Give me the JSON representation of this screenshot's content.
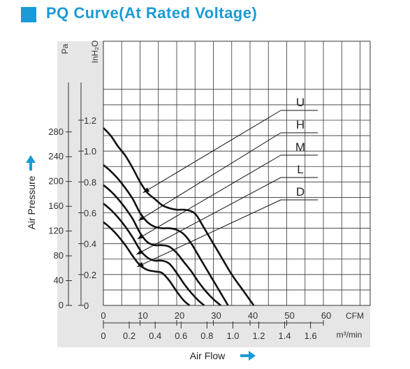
{
  "title": "PQ Curve(At Rated Voltage)",
  "chart_data": {
    "type": "line",
    "xlabel": "Air Flow",
    "ylabel": "Air Pressure",
    "x_units": [
      "CFM",
      "m³/min"
    ],
    "y_units": [
      "Pa",
      "InH₂O"
    ],
    "xlim": [
      0,
      60
    ],
    "ylim_inh2o": [
      0,
      1.2
    ],
    "x_ticks_cfm": [
      "0",
      "10",
      "20",
      "30",
      "40",
      "50",
      "60"
    ],
    "x_ticks_m3min": [
      "0",
      "0.2",
      "0.4",
      "0.6",
      "0.8",
      "1.0",
      "1.2",
      "1.4",
      "1.6"
    ],
    "y_ticks_pa": [
      "0",
      "40",
      "80",
      "120",
      "160",
      "200",
      "240",
      "280"
    ],
    "y_ticks_inh2o": [
      "0",
      "0.2",
      "0.4",
      "0.6",
      "0.8",
      "1.0",
      "1.2"
    ],
    "grid": true,
    "series": [
      {
        "name": "U",
        "points": [
          [
            0,
            1.15
          ],
          [
            2,
            1.1
          ],
          [
            4,
            1.03
          ],
          [
            6,
            0.97
          ],
          [
            8,
            0.89
          ],
          [
            10,
            0.8
          ],
          [
            12,
            0.73
          ],
          [
            14,
            0.69
          ],
          [
            16,
            0.65
          ],
          [
            18,
            0.63
          ],
          [
            20,
            0.62
          ],
          [
            22,
            0.62
          ],
          [
            24,
            0.61
          ],
          [
            25.5,
            0.58
          ],
          [
            27.5,
            0.5
          ],
          [
            30,
            0.4
          ],
          [
            32.5,
            0.3
          ],
          [
            35,
            0.2
          ],
          [
            38,
            0.1
          ],
          [
            41,
            0.0
          ]
        ]
      },
      {
        "name": "H",
        "points": [
          [
            0,
            0.91
          ],
          [
            2,
            0.87
          ],
          [
            4,
            0.82
          ],
          [
            6,
            0.76
          ],
          [
            8,
            0.69
          ],
          [
            10,
            0.6
          ],
          [
            12,
            0.54
          ],
          [
            14,
            0.51
          ],
          [
            16,
            0.5
          ],
          [
            18,
            0.5
          ],
          [
            20,
            0.49
          ],
          [
            22,
            0.46
          ],
          [
            24,
            0.4
          ],
          [
            26,
            0.32
          ],
          [
            28,
            0.24
          ],
          [
            30,
            0.16
          ],
          [
            32,
            0.08
          ],
          [
            34,
            0.0
          ]
        ]
      },
      {
        "name": "M",
        "points": [
          [
            0,
            0.78
          ],
          [
            2,
            0.74
          ],
          [
            4,
            0.69
          ],
          [
            6,
            0.63
          ],
          [
            8,
            0.56
          ],
          [
            10,
            0.47
          ],
          [
            12,
            0.41
          ],
          [
            14,
            0.39
          ],
          [
            16,
            0.39
          ],
          [
            18,
            0.38
          ],
          [
            20,
            0.34
          ],
          [
            22,
            0.28
          ],
          [
            24,
            0.22
          ],
          [
            26,
            0.15
          ],
          [
            28,
            0.09
          ],
          [
            30,
            0.04
          ],
          [
            32,
            0.0
          ]
        ]
      },
      {
        "name": "L",
        "points": [
          [
            0,
            0.66
          ],
          [
            2,
            0.62
          ],
          [
            4,
            0.57
          ],
          [
            6,
            0.51
          ],
          [
            8,
            0.44
          ],
          [
            10,
            0.36
          ],
          [
            12,
            0.31
          ],
          [
            14,
            0.29
          ],
          [
            16,
            0.29
          ],
          [
            18,
            0.27
          ],
          [
            20,
            0.21
          ],
          [
            22,
            0.14
          ],
          [
            24,
            0.08
          ],
          [
            26,
            0.03
          ],
          [
            27.5,
            0.0
          ]
        ]
      },
      {
        "name": "D",
        "points": [
          [
            0,
            0.54
          ],
          [
            2,
            0.5
          ],
          [
            4,
            0.45
          ],
          [
            6,
            0.39
          ],
          [
            8,
            0.32
          ],
          [
            10,
            0.26
          ],
          [
            12,
            0.23
          ],
          [
            14,
            0.22
          ],
          [
            16,
            0.21
          ],
          [
            18,
            0.16
          ],
          [
            20,
            0.09
          ],
          [
            22,
            0.03
          ],
          [
            23.5,
            0.0
          ]
        ]
      }
    ]
  }
}
